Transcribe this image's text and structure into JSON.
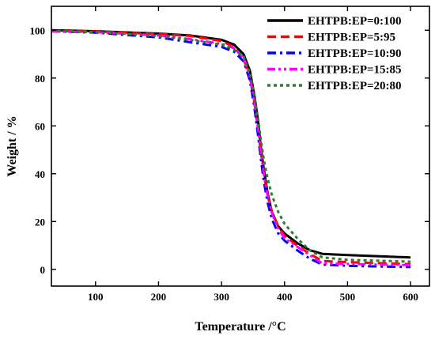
{
  "chart_data": {
    "type": "line",
    "title": "",
    "xlabel": "Temperature /°C",
    "ylabel": "Weight / %",
    "xlim": [
      30,
      630
    ],
    "ylim": [
      -7,
      110
    ],
    "xticks": [
      100,
      200,
      300,
      400,
      500,
      600
    ],
    "yticks": [
      0,
      20,
      40,
      60,
      80,
      100
    ],
    "grid": false,
    "legend_position": "top-right",
    "series": [
      {
        "name": "EHTPB:EP=0:100",
        "color": "#000000",
        "dash": "solid",
        "points": [
          [
            30,
            100
          ],
          [
            100,
            99.6
          ],
          [
            200,
            98.6
          ],
          [
            250,
            97.8
          ],
          [
            300,
            96
          ],
          [
            320,
            94
          ],
          [
            335,
            90
          ],
          [
            345,
            83
          ],
          [
            352,
            73
          ],
          [
            358,
            62
          ],
          [
            362,
            52
          ],
          [
            367,
            42
          ],
          [
            373,
            32
          ],
          [
            380,
            24
          ],
          [
            390,
            18
          ],
          [
            400,
            15
          ],
          [
            420,
            11
          ],
          [
            440,
            8
          ],
          [
            460,
            6.5
          ],
          [
            500,
            6
          ],
          [
            550,
            5.5
          ],
          [
            600,
            5
          ]
        ]
      },
      {
        "name": "EHTPB:EP=5:95",
        "color": "#ff0000",
        "dash": "dash",
        "points": [
          [
            30,
            99.7
          ],
          [
            100,
            99.5
          ],
          [
            200,
            98.4
          ],
          [
            250,
            97.6
          ],
          [
            300,
            95.5
          ],
          [
            320,
            93
          ],
          [
            335,
            88
          ],
          [
            345,
            80
          ],
          [
            352,
            70
          ],
          [
            358,
            58
          ],
          [
            362,
            50
          ],
          [
            367,
            40
          ],
          [
            373,
            31
          ],
          [
            380,
            24
          ],
          [
            390,
            18
          ],
          [
            400,
            14
          ],
          [
            420,
            10
          ],
          [
            440,
            6.5
          ],
          [
            460,
            3.5
          ],
          [
            500,
            3
          ],
          [
            550,
            2.6
          ],
          [
            600,
            2.2
          ]
        ]
      },
      {
        "name": "EHTPB:EP=10:90",
        "color": "#0000ff",
        "dash": "dashdot",
        "points": [
          [
            30,
            99.6
          ],
          [
            100,
            99
          ],
          [
            200,
            97
          ],
          [
            250,
            95
          ],
          [
            300,
            93
          ],
          [
            320,
            91
          ],
          [
            335,
            87
          ],
          [
            345,
            79
          ],
          [
            352,
            68
          ],
          [
            358,
            56
          ],
          [
            362,
            47
          ],
          [
            367,
            37
          ],
          [
            373,
            28
          ],
          [
            380,
            21
          ],
          [
            390,
            15
          ],
          [
            400,
            12
          ],
          [
            420,
            8
          ],
          [
            440,
            4.5
          ],
          [
            460,
            2
          ],
          [
            500,
            1.5
          ],
          [
            550,
            1.2
          ],
          [
            600,
            1
          ]
        ]
      },
      {
        "name": "EHTPB:EP=15:85",
        "color": "#ff00ff",
        "dash": "dashdotdot",
        "points": [
          [
            30,
            99.5
          ],
          [
            100,
            99.2
          ],
          [
            200,
            97.8
          ],
          [
            250,
            96.3
          ],
          [
            300,
            94.3
          ],
          [
            320,
            92.5
          ],
          [
            335,
            88.5
          ],
          [
            345,
            80.5
          ],
          [
            352,
            70.5
          ],
          [
            358,
            59
          ],
          [
            362,
            50
          ],
          [
            367,
            40
          ],
          [
            373,
            31
          ],
          [
            380,
            23.5
          ],
          [
            390,
            17
          ],
          [
            400,
            13
          ],
          [
            420,
            9.5
          ],
          [
            440,
            6
          ],
          [
            460,
            2.5
          ],
          [
            500,
            2.3
          ],
          [
            550,
            2
          ],
          [
            600,
            1.8
          ]
        ]
      },
      {
        "name": "EHTPB:EP=20:80",
        "color": "#2e7d32",
        "dash": "dot",
        "points": [
          [
            30,
            99.8
          ],
          [
            100,
            99.3
          ],
          [
            200,
            97.5
          ],
          [
            250,
            96
          ],
          [
            300,
            94
          ],
          [
            320,
            92
          ],
          [
            335,
            89
          ],
          [
            345,
            82
          ],
          [
            352,
            73
          ],
          [
            358,
            63
          ],
          [
            362,
            55
          ],
          [
            367,
            46
          ],
          [
            373,
            38
          ],
          [
            380,
            31
          ],
          [
            390,
            24
          ],
          [
            400,
            19
          ],
          [
            420,
            13
          ],
          [
            440,
            8
          ],
          [
            460,
            5
          ],
          [
            500,
            4
          ],
          [
            550,
            3.6
          ],
          [
            600,
            3.2
          ]
        ]
      }
    ]
  }
}
